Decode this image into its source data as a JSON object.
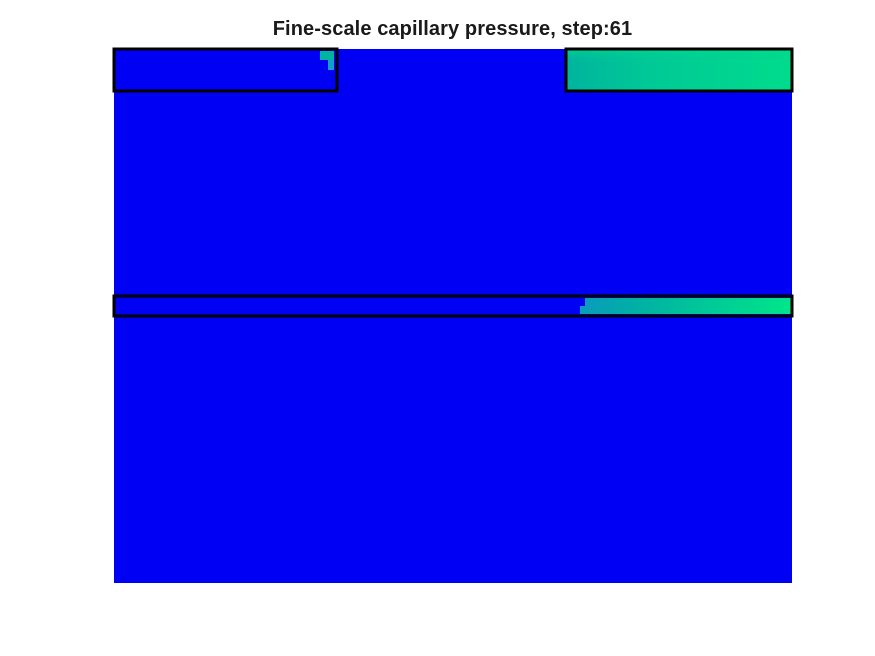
{
  "figure": {
    "title": "Fine-scale capillary pressure, step:61"
  },
  "colors": {
    "background_field": "#0000f5",
    "green_dark": "#00b8a0",
    "green_mid": "#00c896",
    "green_light": "#00e68c",
    "teal_edge": "#12a0c8",
    "outline": "#000000"
  },
  "chart_data": {
    "type": "heatmap",
    "title": "Fine-scale capillary pressure, step:61",
    "xlabel": "",
    "ylabel": "",
    "grid": false,
    "colormap": "winter",
    "axes_visible": false,
    "regions": [
      {
        "name": "top-left-block",
        "value_level": "low",
        "note": "almost entirely blue; small green patch in upper-right corner"
      },
      {
        "name": "top-right-block",
        "value_level": "high",
        "note": "green gradient, darker on left, lighter on right"
      },
      {
        "name": "middle-strip",
        "value_level": "mixed",
        "note": "blue on left ~70%, green gradient on right ~30%"
      },
      {
        "name": "background-domain",
        "value_level": "low",
        "note": "uniform blue"
      }
    ]
  }
}
